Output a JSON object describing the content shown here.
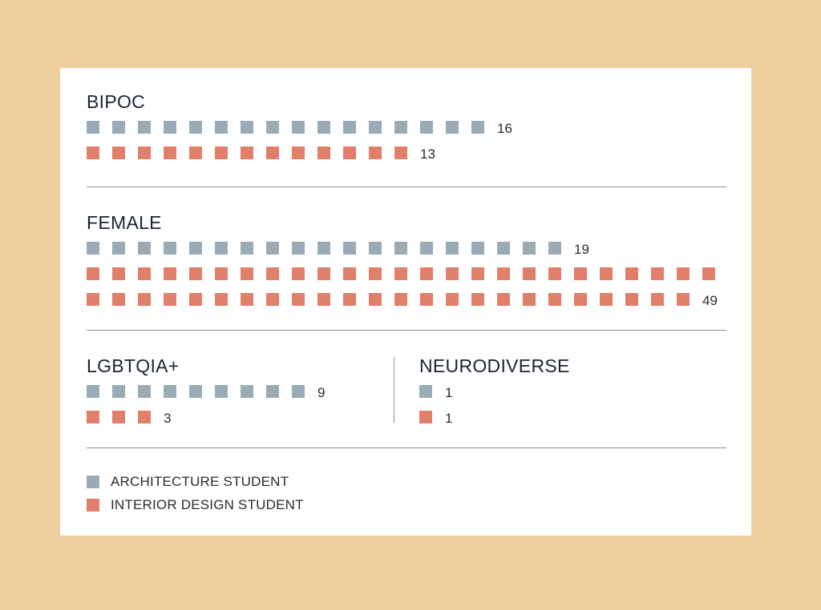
{
  "colors": {
    "architecture": "#9AABB8",
    "interior": "#E0806A",
    "background": "#EDD09E"
  },
  "chart_data": {
    "type": "pictogram",
    "series_names": [
      "ARCHITECTURE STUDENT",
      "INTERIOR DESIGN STUDENT"
    ],
    "categories": [
      {
        "name": "BIPOC",
        "architecture": 16,
        "interior": 13
      },
      {
        "name": "FEMALE",
        "architecture": 19,
        "interior": 49
      },
      {
        "name": "LGBTQIA+",
        "architecture": 9,
        "interior": 3
      },
      {
        "name": "NEURODIVERSE",
        "architecture": 1,
        "interior": 1
      }
    ]
  },
  "legend": [
    {
      "label": "ARCHITECTURE STUDENT",
      "series": "architecture"
    },
    {
      "label": "INTERIOR DESIGN STUDENT",
      "series": "interior"
    }
  ]
}
